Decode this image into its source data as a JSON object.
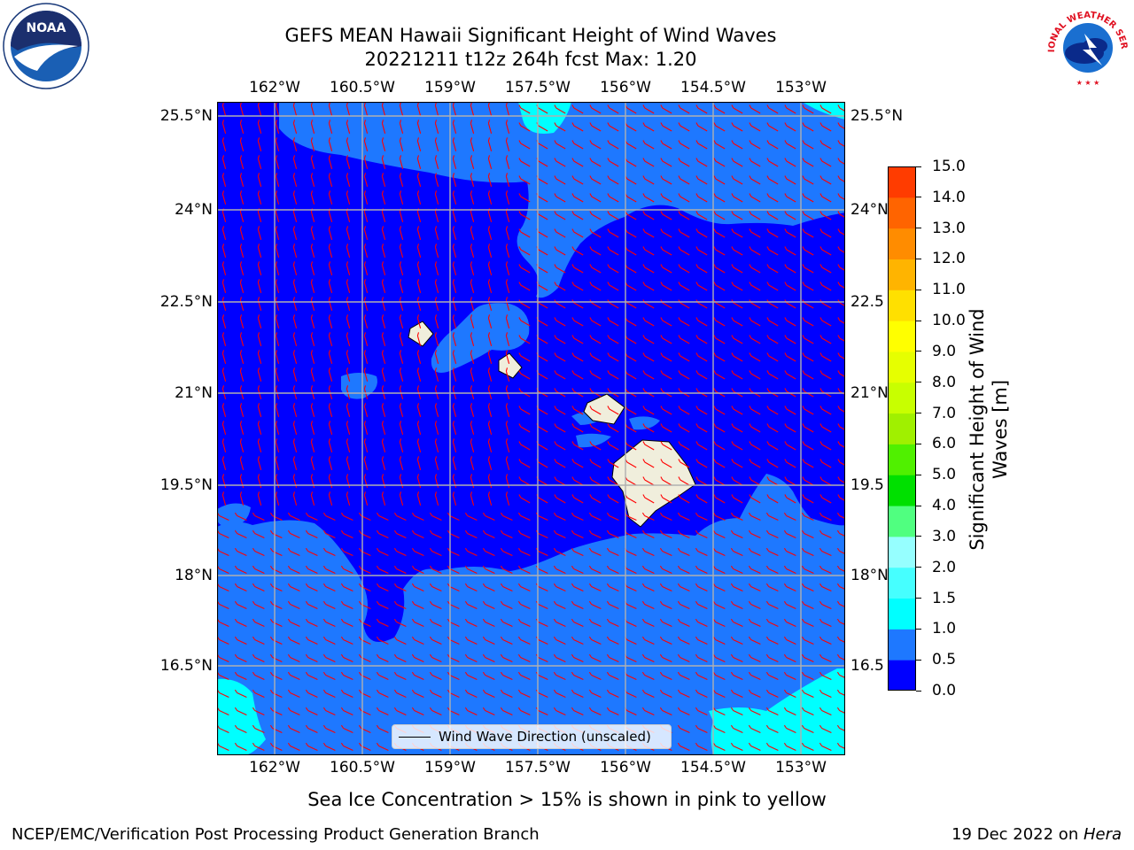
{
  "header": {
    "title_line1": "GEFS MEAN Hawaii Significant Height of Wind Waves",
    "title_line2": "20221211 t12z 264h fcst   Max: 1.20"
  },
  "logos": {
    "noaa": "NOAA",
    "nws": "NATIONAL WEATHER SERVICE"
  },
  "map": {
    "lon_ticks": [
      "162°W",
      "160.5°W",
      "159°W",
      "157.5°W",
      "156°W",
      "154.5°W",
      "153°W"
    ],
    "lat_ticks": [
      "25.5°N",
      "24°N",
      "22.5°N",
      "21°N",
      "19.5°N",
      "18°N",
      "16.5°N"
    ],
    "lat_ticks_right": [
      "25.5°N",
      "24°N",
      "22.5",
      "21°N",
      "19.5",
      "18°N",
      "16.5"
    ],
    "legend_label": "Wind Wave Direction (unscaled)",
    "colors": {
      "level_0_0_5": "#0000ff",
      "level_0_5_1_0": "#1e78ff",
      "level_1_0_1_5": "#00ffff",
      "land": "#f0eedc",
      "arrows": "#ff0000",
      "grid": "#b0b0b0"
    }
  },
  "colorbar": {
    "label_line1": "Significant Height of Wind",
    "label_line2": "Waves [m]",
    "ticks": [
      "0.0",
      "0.5",
      "1.0",
      "1.5",
      "2.0",
      "3.0",
      "4.0",
      "5.0",
      "6.0",
      "7.0",
      "8.0",
      "9.0",
      "10.0",
      "11.0",
      "12.0",
      "13.0",
      "14.0",
      "15.0"
    ],
    "colors": [
      "#0000ff",
      "#1e78ff",
      "#00ffff",
      "#46ffff",
      "#96ffff",
      "#50ff80",
      "#00e000",
      "#50f000",
      "#a0f000",
      "#c8ff00",
      "#e6ff00",
      "#ffff00",
      "#ffe000",
      "#ffb400",
      "#ff8c00",
      "#ff6400",
      "#ff3c00",
      "#ff0000"
    ]
  },
  "notes": {
    "ice_note": "Sea Ice Concentration > 15% is shown in pink to yellow",
    "footer_left": "NCEP/EMC/Verification Post Processing Product Generation Branch",
    "footer_right_prefix": "19 Dec 2022 on ",
    "footer_right_host": "Hera"
  }
}
